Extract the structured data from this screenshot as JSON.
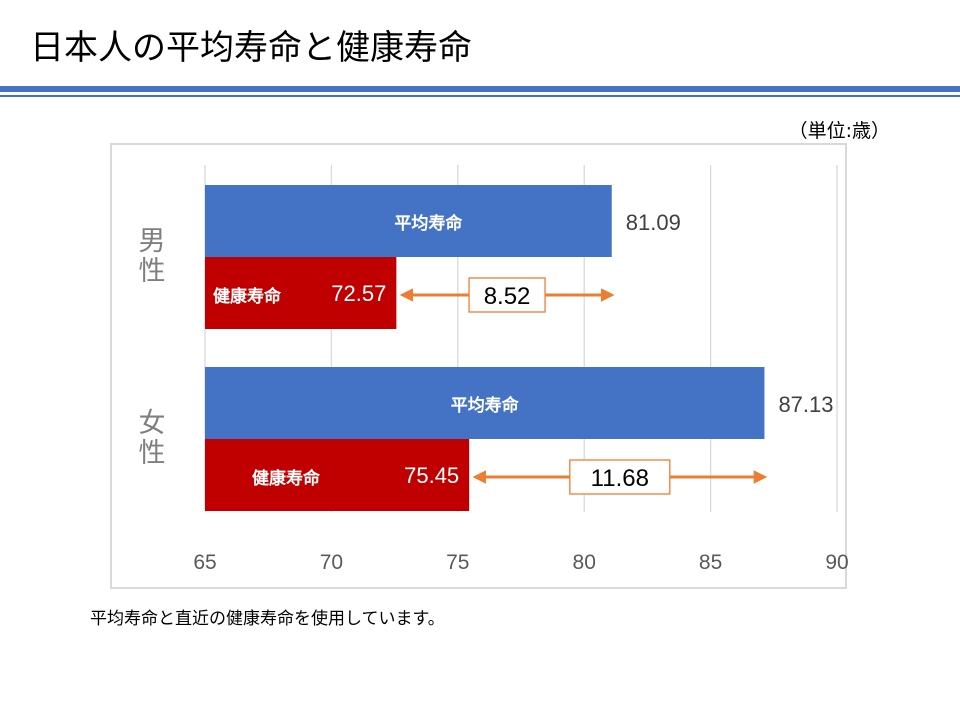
{
  "page": {
    "title": "日本人の平均寿命と健康寿命",
    "unit_note": "（単位:歳）",
    "footnote": "平均寿命と直近の健康寿命を使用しています。"
  },
  "colors": {
    "accent_rule": "#4472c4",
    "avg_bar": "#4472c4",
    "healthy_bar": "#c00000",
    "arrow": "#ed7d31",
    "grid": "#d9d9d9",
    "tick_text": "#595959"
  },
  "chart_data": {
    "type": "bar",
    "orientation": "horizontal",
    "xlim": [
      65,
      90
    ],
    "x_ticks": [
      "65",
      "70",
      "75",
      "80",
      "85",
      "90"
    ],
    "grid": true,
    "groups": [
      {
        "category": "男\n性",
        "bars": [
          {
            "label": "平均寿命",
            "value": 81.09,
            "value_text": "81.09",
            "color": "#4472c4"
          },
          {
            "label": "健康寿命",
            "value": 72.57,
            "value_text": "72.57",
            "color": "#c00000"
          }
        ],
        "gap": {
          "value": 8.52,
          "text": "8.52"
        }
      },
      {
        "category": "女\n性",
        "bars": [
          {
            "label": "平均寿命",
            "value": 87.13,
            "value_text": "87.13",
            "color": "#4472c4"
          },
          {
            "label": "健康寿命",
            "value": 75.45,
            "value_text": "75.45",
            "color": "#c00000"
          }
        ],
        "gap": {
          "value": 11.68,
          "text": "11.68"
        }
      }
    ]
  }
}
